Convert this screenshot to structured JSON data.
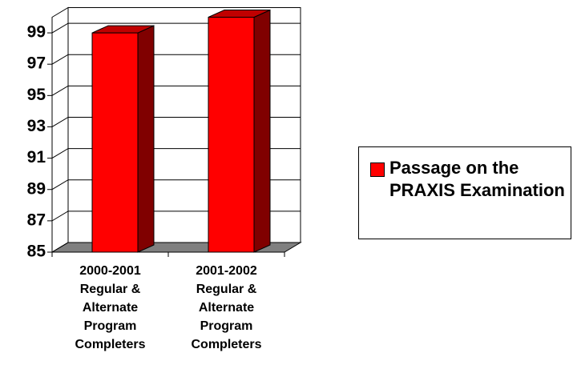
{
  "chart_data": {
    "type": "bar",
    "categories": [
      "2000-2001 Regular & Alternate Program Completers",
      "2001-2002 Regular & Alternate Program Completers"
    ],
    "series": [
      {
        "name": "Passage on the PRAXIS Examination",
        "color": "#ff0000",
        "values": [
          99,
          100
        ]
      }
    ],
    "ylim": [
      85,
      100
    ],
    "yticks": [
      85,
      87,
      89,
      91,
      93,
      95,
      97,
      99
    ],
    "grid": true,
    "legend": "right"
  }
}
